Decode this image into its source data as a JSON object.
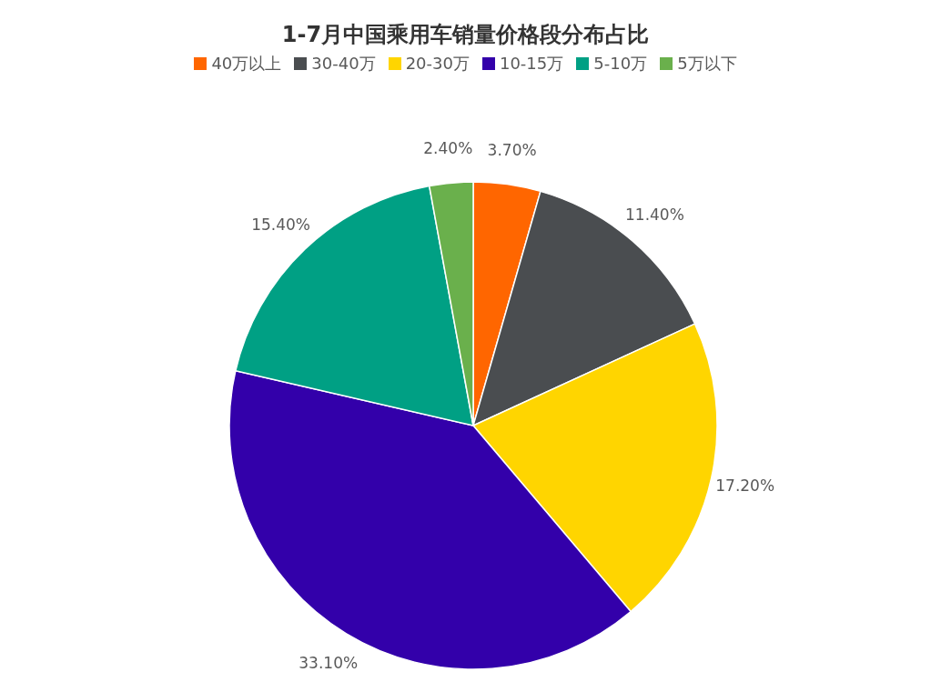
{
  "chart_data": {
    "type": "pie",
    "title": "1-7月中国乘用车销量价格段分布占比",
    "categories": [
      "40万以上",
      "30-40万",
      "20-30万",
      "10-15万",
      "5-10万",
      "5万以下"
    ],
    "values": [
      3.7,
      11.4,
      17.2,
      33.1,
      15.4,
      2.4
    ],
    "value_labels": [
      "3.70%",
      "11.40%",
      "17.20%",
      "33.10%",
      "15.40%",
      "2.40%"
    ],
    "colors": [
      "#ff6600",
      "#4a4d50",
      "#ffd500",
      "#3300aa",
      "#00a084",
      "#6ab04c"
    ],
    "legend": "top"
  }
}
